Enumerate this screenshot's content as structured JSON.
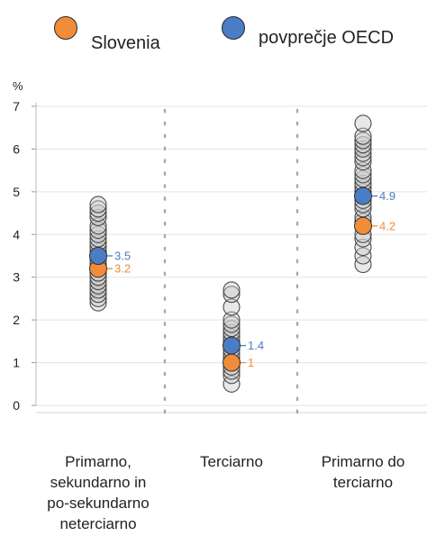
{
  "legend": {
    "slovenia": {
      "label": "Slovenia",
      "color": "#f08c3a"
    },
    "oecd": {
      "label": "povprečje OECD",
      "color": "#4a7dc4"
    }
  },
  "chart_data": {
    "type": "scatter",
    "ylabel": "%",
    "ylim": [
      0,
      7
    ],
    "yticks": [
      "0",
      "1",
      "2",
      "3",
      "4",
      "5",
      "6",
      "7"
    ],
    "grid": true,
    "categories": [
      "Primarno, sekundarno in po-sekundarno neterciarno",
      "Terciarno",
      "Primarno do terciarno"
    ],
    "category_lines": [
      [
        "Primarno,",
        "sekundarno in",
        "po-sekundarno",
        "neterciarno"
      ],
      [
        "Terciarno"
      ],
      [
        "Primarno do",
        "terciarno"
      ]
    ],
    "countries": [
      [
        2.4,
        2.5,
        2.6,
        2.7,
        2.8,
        2.9,
        3.0,
        3.0,
        3.1,
        3.1,
        3.2,
        3.3,
        3.3,
        3.4,
        3.5,
        3.6,
        3.7,
        3.8,
        3.9,
        4.0,
        4.1,
        4.2,
        4.4,
        4.5,
        4.6,
        4.7
      ],
      [
        0.5,
        0.7,
        0.8,
        0.9,
        1.0,
        1.1,
        1.2,
        1.3,
        1.4,
        1.5,
        1.6,
        1.7,
        1.8,
        1.9,
        2.0,
        2.3,
        2.6,
        2.7
      ],
      [
        3.3,
        3.5,
        3.7,
        3.9,
        4.0,
        4.2,
        4.3,
        4.4,
        4.6,
        4.7,
        4.8,
        5.0,
        5.1,
        5.2,
        5.3,
        5.4,
        5.5,
        5.7,
        5.8,
        5.9,
        6.0,
        6.1,
        6.2,
        6.3,
        6.6
      ]
    ],
    "series": [
      {
        "name": "Slovenia",
        "values": [
          3.2,
          1.0,
          4.2
        ],
        "labels": [
          "3.2",
          "1",
          "4.2"
        ],
        "color": "#f08c3a"
      },
      {
        "name": "povprečje OECD",
        "values": [
          3.5,
          1.4,
          4.9
        ],
        "labels": [
          "3.5",
          "1.4",
          "4.9"
        ],
        "color": "#4a7dc4"
      }
    ]
  }
}
